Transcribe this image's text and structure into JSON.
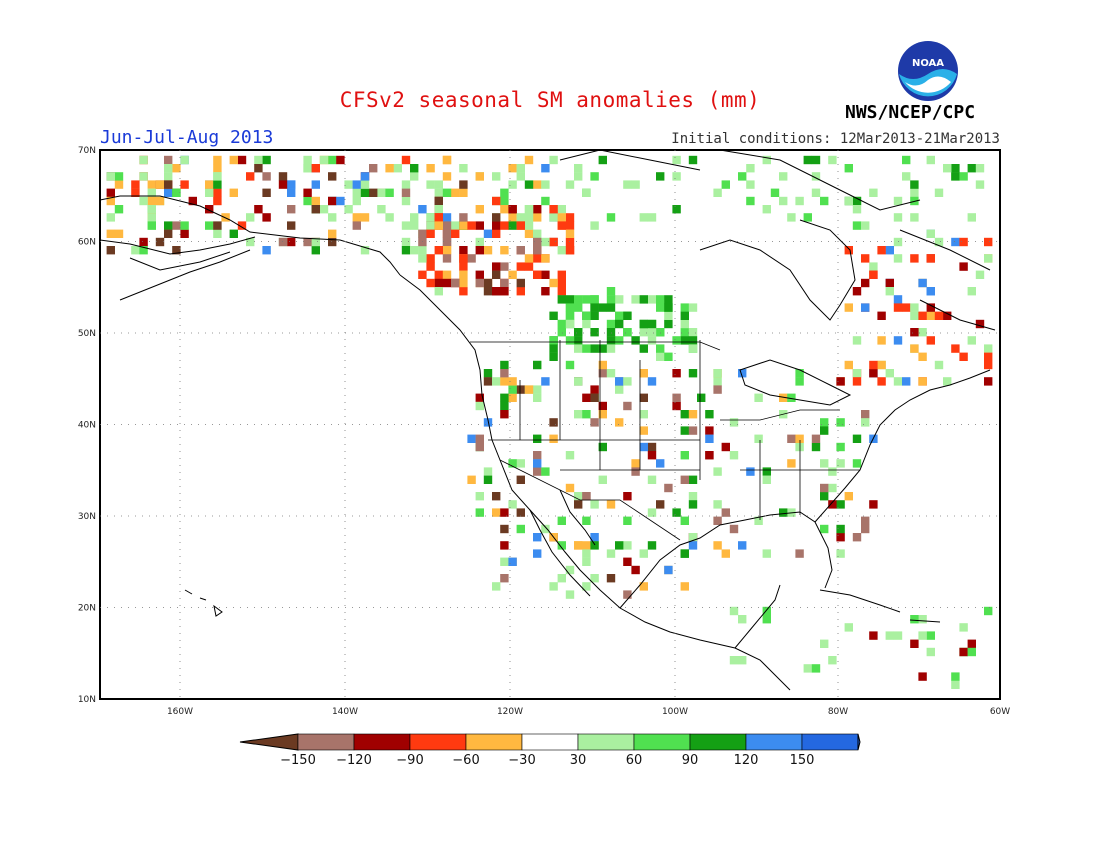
{
  "title": "CFSv2 seasonal SM anomalies (mm)",
  "period": "Jun-Jul-Aug 2013",
  "initial_conditions": "Initial conditions: 12Mar2013-21Mar2013",
  "agency": "NWS/NCEP/CPC",
  "logo_text": "NOAA",
  "map": {
    "lat_labels": [
      "70N",
      "60N",
      "50N",
      "40N",
      "30N",
      "20N",
      "10N"
    ],
    "lon_labels": [
      "160W",
      "140W",
      "120W",
      "100W",
      "80W",
      "60W"
    ],
    "lat_range": [
      10,
      70
    ],
    "lon_range": [
      -171,
      -60
    ],
    "grid": "dotted"
  },
  "legend": {
    "labels": [
      "-150",
      "-120",
      "-90",
      "-60",
      "-30",
      "30",
      "60",
      "90",
      "120",
      "150"
    ],
    "colors": [
      "#6b3a22",
      "#a8746a",
      "#a00000",
      "#ff3a10",
      "#ffb840",
      "#ffffff",
      "#aaf0a0",
      "#50e050",
      "#14a014",
      "#3c8cf0",
      "#2468e0"
    ]
  }
}
